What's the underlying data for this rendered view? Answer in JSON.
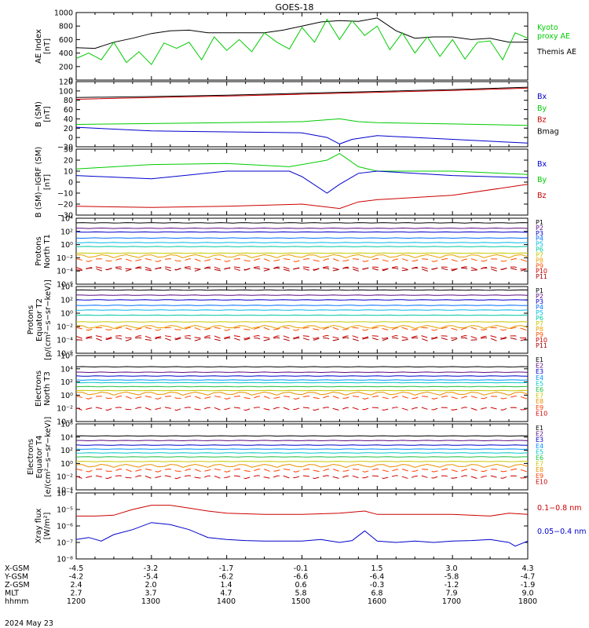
{
  "title": "GOES-18",
  "date_label": "2024 May 23",
  "colors": {
    "black": "#000000",
    "green": "#00cc00",
    "blue": "#0000cc",
    "red": "#cc0000",
    "P": [
      "#000000",
      "#5a0a80",
      "#0000cc",
      "#0070ff",
      "#00b8e8",
      "#00c8a0",
      "#c8c800",
      "#e8a000",
      "#ff5000",
      "#cc0000",
      "#aa0000"
    ],
    "E": [
      "#000000",
      "#5a0a80",
      "#0000cc",
      "#0090ff",
      "#00c8c8",
      "#20c040",
      "#c8c800",
      "#e89000",
      "#ff4000",
      "#cc0000"
    ]
  },
  "x_axis": {
    "rows": [
      {
        "name": "X-GSM",
        "values": [
          "-4.5",
          "-3.2",
          "-1.7",
          "-0.1",
          "1.5",
          "3.0",
          "4.3"
        ]
      },
      {
        "name": "Y-GSM",
        "values": [
          "-4.2",
          "-5.4",
          "-6.2",
          "-6.6",
          "-6.4",
          "-5.8",
          "-4.7"
        ]
      },
      {
        "name": "Z-GSM",
        "values": [
          "2.4",
          "2.0",
          "1.4",
          "0.6",
          "-0.3",
          "-1.2",
          "-1.9"
        ]
      },
      {
        "name": "MLT",
        "values": [
          "2.7",
          "3.7",
          "4.7",
          "5.8",
          "6.8",
          "7.9",
          "9.0"
        ]
      },
      {
        "name": "hhmm",
        "values": [
          "1200",
          "1300",
          "1400",
          "1500",
          "1600",
          "1700",
          "1800"
        ]
      }
    ]
  },
  "chart_data": [
    {
      "id": "ae",
      "type": "line",
      "ylabel": "AE Index\n[nT]",
      "scale": "linear",
      "ylim": [
        0,
        1000
      ],
      "yticks": [
        "0",
        "200",
        "400",
        "600",
        "800",
        "1000"
      ],
      "legend": [
        {
          "label": "Kyoto\nproxy AE",
          "color": "#00cc00"
        },
        {
          "label": "Themis AE",
          "color": "#000000"
        }
      ],
      "series": [
        {
          "name": "Themis AE",
          "color": "#000000",
          "x": [
            1200,
            1215,
            1230,
            1245,
            1300,
            1315,
            1330,
            1345,
            1400,
            1415,
            1430,
            1445,
            1500,
            1515,
            1530,
            1545,
            1600,
            1615,
            1630,
            1645,
            1700,
            1715,
            1730,
            1745,
            1800
          ],
          "values": [
            480,
            470,
            560,
            620,
            690,
            730,
            740,
            700,
            700,
            700,
            700,
            740,
            800,
            860,
            880,
            870,
            920,
            730,
            620,
            640,
            640,
            600,
            620,
            560,
            560
          ]
        },
        {
          "name": "Kyoto proxy AE",
          "color": "#00cc00",
          "x": [
            1200,
            1210,
            1220,
            1230,
            1240,
            1250,
            1300,
            1310,
            1320,
            1330,
            1340,
            1350,
            1400,
            1410,
            1420,
            1430,
            1440,
            1450,
            1500,
            1510,
            1520,
            1530,
            1540,
            1550,
            1600,
            1610,
            1620,
            1630,
            1640,
            1650,
            1700,
            1710,
            1720,
            1730,
            1740,
            1750,
            1800
          ],
          "values": [
            320,
            400,
            300,
            560,
            260,
            420,
            230,
            550,
            470,
            560,
            300,
            640,
            440,
            600,
            420,
            700,
            560,
            460,
            780,
            560,
            900,
            600,
            880,
            660,
            800,
            450,
            700,
            400,
            640,
            350,
            600,
            310,
            560,
            580,
            300,
            700,
            620
          ]
        }
      ]
    },
    {
      "id": "bsm",
      "type": "line",
      "ylabel": "B (SM)\n[nT]",
      "scale": "linear",
      "ylim": [
        -20,
        120
      ],
      "yticks": [
        "−20",
        "0",
        "20",
        "40",
        "60",
        "80",
        "100",
        "120"
      ],
      "legend": [
        {
          "label": "Bx",
          "color": "#0000cc"
        },
        {
          "label": "By",
          "color": "#00cc00"
        },
        {
          "label": "Bz",
          "color": "#cc0000"
        },
        {
          "label": "Bmag",
          "color": "#000000"
        }
      ],
      "series": [
        {
          "name": "Bmag",
          "color": "#000000",
          "x": [
            1200,
            1300,
            1400,
            1500,
            1600,
            1700,
            1800
          ],
          "values": [
            86,
            88,
            91,
            95,
            99,
            103,
            108
          ]
        },
        {
          "name": "Bz",
          "color": "#cc0000",
          "x": [
            1200,
            1300,
            1400,
            1500,
            1600,
            1700,
            1800
          ],
          "values": [
            82,
            86,
            89,
            93,
            97,
            101,
            106
          ]
        },
        {
          "name": "By",
          "color": "#00cc00",
          "x": [
            1200,
            1300,
            1400,
            1500,
            1530,
            1545,
            1600,
            1700,
            1800
          ],
          "values": [
            28,
            30,
            32,
            34,
            40,
            34,
            32,
            29,
            26
          ]
        },
        {
          "name": "Bx",
          "color": "#0000cc",
          "x": [
            1200,
            1300,
            1400,
            1500,
            1520,
            1530,
            1540,
            1600,
            1700,
            1800
          ],
          "values": [
            22,
            14,
            12,
            10,
            0,
            -14,
            -4,
            4,
            -4,
            -12
          ]
        }
      ]
    },
    {
      "id": "bsmigrf",
      "type": "line",
      "ylabel": "B (SM)−IGRF (SM)\n[nT]",
      "scale": "linear",
      "ylim": [
        -30,
        30
      ],
      "yticks": [
        "−30",
        "−20",
        "−10",
        "0",
        "10",
        "20",
        "30"
      ],
      "legend": [
        {
          "label": "Bx",
          "color": "#0000cc"
        },
        {
          "label": "By",
          "color": "#00cc00"
        },
        {
          "label": "Bz",
          "color": "#cc0000"
        }
      ],
      "series": [
        {
          "name": "By",
          "color": "#00cc00",
          "x": [
            1200,
            1300,
            1400,
            1450,
            1520,
            1530,
            1545,
            1600,
            1700,
            1800
          ],
          "values": [
            12,
            16,
            17,
            14,
            20,
            26,
            14,
            10,
            10,
            7
          ]
        },
        {
          "name": "Bx",
          "color": "#0000cc",
          "x": [
            1200,
            1300,
            1400,
            1450,
            1500,
            1520,
            1530,
            1545,
            1600,
            1700,
            1800
          ],
          "values": [
            6,
            3,
            10,
            10,
            5,
            -10,
            -2,
            8,
            10,
            6,
            4
          ]
        },
        {
          "name": "Bz",
          "color": "#cc0000",
          "x": [
            1200,
            1300,
            1400,
            1500,
            1530,
            1545,
            1600,
            1700,
            1800
          ],
          "values": [
            -22,
            -23,
            -22,
            -20,
            -24,
            -18,
            -16,
            -12,
            -2
          ]
        }
      ]
    },
    {
      "id": "p_t1",
      "type": "line",
      "ylabel": "Protons\nNorth T1",
      "scale": "log",
      "ylim": [
        1e-06,
        10000.0
      ],
      "yticks": [
        "10⁻⁶",
        "10⁻⁴",
        "10⁻²",
        "10⁰",
        "10²",
        "10⁴"
      ],
      "legend": [
        "P1",
        "P2",
        "P3",
        "P4",
        "P5",
        "P6",
        "P7",
        "P8",
        "P9",
        "P10",
        "P11"
      ],
      "series_values": [
        2000,
        300,
        80,
        10,
        2,
        0.5,
        0.05,
        0.02,
        0.005,
        0.0003,
        0.0002
      ]
    },
    {
      "id": "p_t2",
      "type": "line",
      "ylabel": "Protons\nEquator T2\n[p/(cm²−s−sr−keV)]",
      "scale": "log",
      "ylim": [
        1e-06,
        10000.0
      ],
      "yticks": [
        "10⁻⁶",
        "10⁻⁴",
        "10⁻²",
        "10⁰",
        "10²",
        "10⁴"
      ],
      "legend": [
        "P1",
        "P2",
        "P3",
        "P4",
        "P5",
        "P6",
        "P7",
        "P8",
        "P9",
        "P10",
        "P11"
      ],
      "series_values": [
        3000,
        500,
        100,
        15,
        3,
        0.5,
        0.05,
        0.01,
        0.005,
        0.0003,
        0.00015
      ]
    },
    {
      "id": "e_t3",
      "type": "line",
      "ylabel": "Electrons\nNorth T3",
      "scale": "log",
      "ylim": [
        0.0001,
        1000000.0
      ],
      "yticks": [
        "10⁻⁴",
        "10⁻²",
        "10⁰",
        "10²",
        "10⁴",
        "10⁶"
      ],
      "legend": [
        "E1",
        "E2",
        "E3",
        "E4",
        "E5",
        "E6",
        "E7",
        "E8",
        "E9",
        "E10"
      ],
      "series_values": [
        20000,
        3000,
        800,
        200,
        80,
        20,
        5,
        2,
        0.5,
        0.01
      ]
    },
    {
      "id": "e_t4",
      "type": "line",
      "ylabel": "Electrons\nEquator T4\n[e/(cm²−s−sr−keV)]",
      "scale": "log",
      "ylim": [
        0.0001,
        1000000.0
      ],
      "yticks": [
        "10⁻⁴",
        "10⁻²",
        "10⁰",
        "10²",
        "10⁴",
        "10⁶"
      ],
      "legend": [
        "E1",
        "E2",
        "E3",
        "E4",
        "E5",
        "E6",
        "E7",
        "E8",
        "E9",
        "E10"
      ],
      "series_values": [
        15000,
        3000,
        600,
        150,
        40,
        10,
        2,
        0.5,
        0.1,
        0.01
      ]
    },
    {
      "id": "xray",
      "type": "line",
      "ylabel": "Xray flux\n[W/m²]",
      "scale": "log",
      "ylim": [
        1e-08,
        0.0001
      ],
      "yticks": [
        "10⁻⁸",
        "10⁻⁷",
        "10⁻⁶",
        "10⁻⁵",
        "10⁻⁴"
      ],
      "legend": [
        {
          "label": "0.1−0.8 nm",
          "color": "#cc0000"
        },
        {
          "label": "0.05−0.4 nm",
          "color": "#0000cc"
        }
      ],
      "series": [
        {
          "name": "0.1−0.8 nm",
          "color": "#cc0000",
          "x": [
            1200,
            1215,
            1230,
            1245,
            1300,
            1315,
            1330,
            1345,
            1400,
            1430,
            1500,
            1530,
            1550,
            1600,
            1630,
            1700,
            1730,
            1745,
            1800
          ],
          "values": [
            4e-06,
            4e-06,
            4.5e-06,
            1e-05,
            1.8e-05,
            1.8e-05,
            1.2e-05,
            8e-06,
            6e-06,
            5e-06,
            5e-06,
            6e-06,
            8e-06,
            5e-06,
            5e-06,
            5e-06,
            4e-06,
            6e-06,
            5e-06
          ]
        },
        {
          "name": "0.05−0.4 nm",
          "color": "#0000cc",
          "x": [
            1200,
            1210,
            1220,
            1230,
            1245,
            1300,
            1315,
            1330,
            1345,
            1400,
            1415,
            1430,
            1445,
            1500,
            1515,
            1530,
            1540,
            1550,
            1600,
            1615,
            1630,
            1645,
            1700,
            1715,
            1730,
            1745,
            1750,
            1800
          ],
          "values": [
            1.5e-07,
            2e-07,
            1.2e-07,
            3e-07,
            6e-07,
            1.6e-06,
            1.2e-06,
            6e-07,
            2e-07,
            1.5e-07,
            1.3e-07,
            1.2e-07,
            1.2e-07,
            1.2e-07,
            1.5e-07,
            1e-07,
            1.3e-07,
            5e-07,
            1.2e-07,
            1e-07,
            1.2e-07,
            1e-07,
            1.2e-07,
            1.3e-07,
            1.5e-07,
            1e-07,
            6e-08,
            1.2e-07
          ]
        }
      ]
    }
  ]
}
